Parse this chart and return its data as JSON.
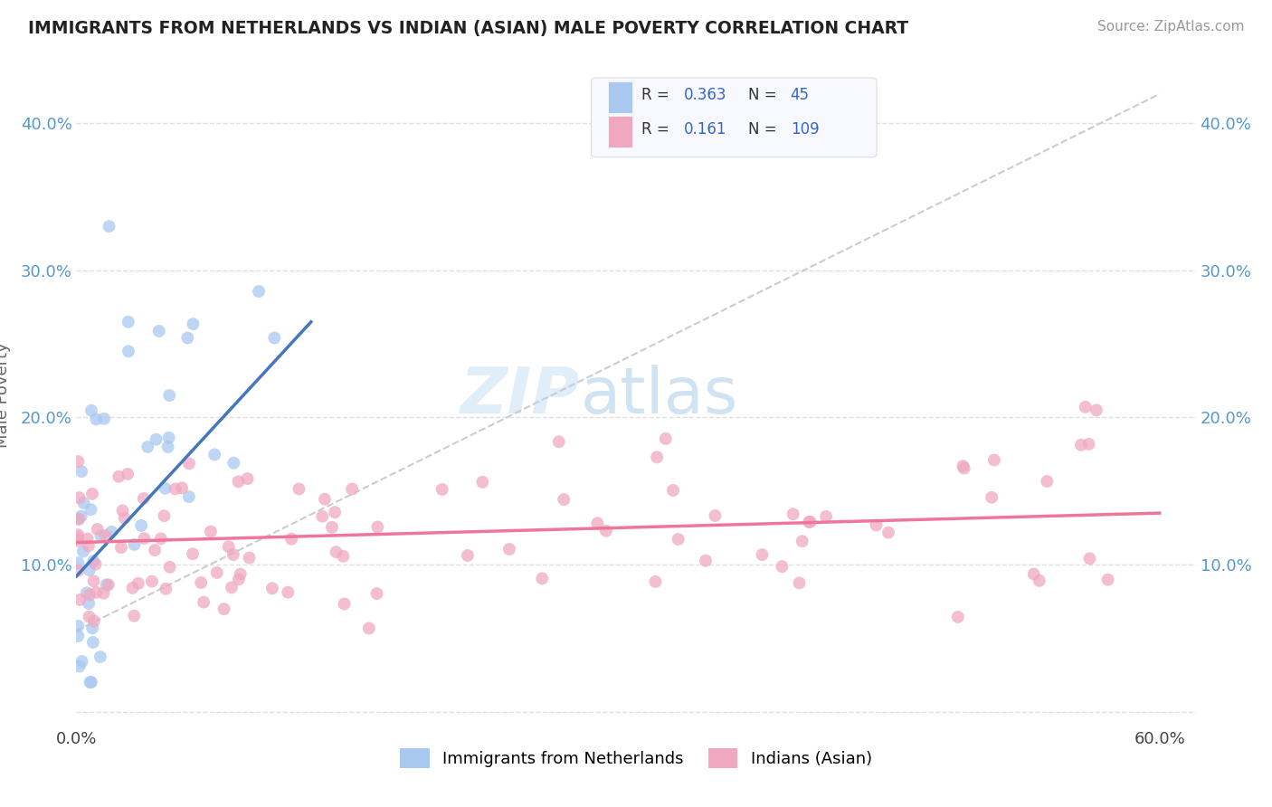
{
  "title": "IMMIGRANTS FROM NETHERLANDS VS INDIAN (ASIAN) MALE POVERTY CORRELATION CHART",
  "source": "Source: ZipAtlas.com",
  "ylabel": "Male Poverty",
  "xlim": [
    0.0,
    0.62
  ],
  "ylim": [
    -0.01,
    0.44
  ],
  "color_blue": "#a8c8f0",
  "color_pink": "#f0a8c0",
  "color_blue_line": "#4477bb",
  "color_pink_line": "#ee7799",
  "color_dashed_line": "#cccccc",
  "watermark_zip": "ZIP",
  "watermark_atlas": "atlas",
  "background_color": "#ffffff",
  "grid_color": "#e0e0e0",
  "blue_line_x0": 0.0,
  "blue_line_y0": 0.092,
  "blue_line_x1": 0.13,
  "blue_line_y1": 0.265,
  "pink_line_x0": 0.0,
  "pink_line_y0": 0.115,
  "pink_line_x1": 0.6,
  "pink_line_y1": 0.135,
  "dash_line_x0": 0.0,
  "dash_line_y0": 0.055,
  "dash_line_x1": 0.6,
  "dash_line_y1": 0.42
}
